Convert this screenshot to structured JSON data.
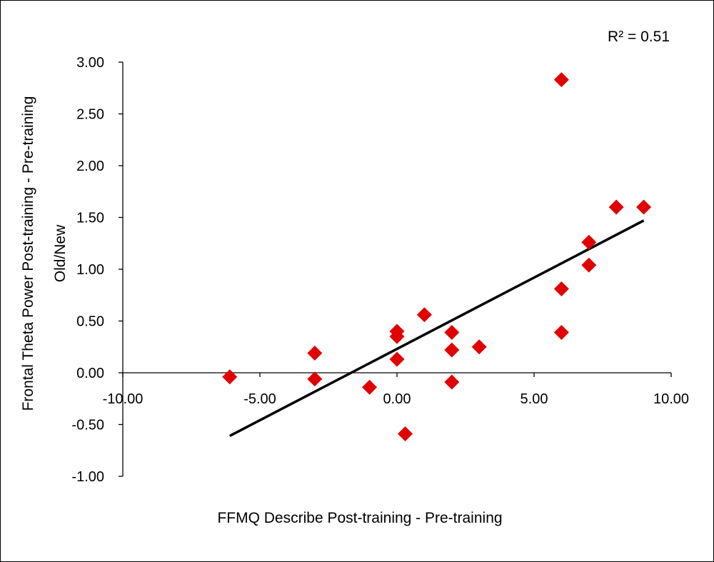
{
  "chart_data": {
    "type": "scatter",
    "title": "",
    "xlabel": "FFMQ Describe Post-training - Pre-training",
    "ylabel_lines": [
      "Frontal Theta Power Post-training - Pre-training",
      "Old/New"
    ],
    "xlim": [
      -10,
      10
    ],
    "ylim": [
      -1,
      3
    ],
    "x_ticks": [
      -10,
      -5,
      0,
      5,
      10
    ],
    "x_tick_labels": [
      "-10.00",
      "-5.00",
      "0.00",
      "5.00",
      "10.00"
    ],
    "y_ticks": [
      3,
      2.5,
      2,
      1.5,
      1,
      0.5,
      0,
      -0.5,
      -1
    ],
    "y_tick_labels": [
      "3.00",
      "2.50",
      "2.00",
      "1.50",
      "1.00",
      "0.50",
      "0.00",
      "-0.50",
      "-1.00"
    ],
    "grid": false,
    "legend": "none",
    "marker": "diamond",
    "marker_color": "#e00000",
    "line_color": "#000000",
    "annotation": "R² = 0.51",
    "points": [
      {
        "x": -6.1,
        "y": -0.04
      },
      {
        "x": -3.0,
        "y": 0.19
      },
      {
        "x": -3.0,
        "y": -0.06
      },
      {
        "x": -1.0,
        "y": -0.14
      },
      {
        "x": 0.0,
        "y": 0.4
      },
      {
        "x": 0.0,
        "y": 0.35
      },
      {
        "x": 0.0,
        "y": 0.13
      },
      {
        "x": 0.3,
        "y": -0.59
      },
      {
        "x": 1.0,
        "y": 0.56
      },
      {
        "x": 2.0,
        "y": 0.39
      },
      {
        "x": 2.0,
        "y": 0.22
      },
      {
        "x": 2.0,
        "y": -0.09
      },
      {
        "x": 3.0,
        "y": 0.25
      },
      {
        "x": 6.0,
        "y": 2.83
      },
      {
        "x": 6.0,
        "y": 0.81
      },
      {
        "x": 6.0,
        "y": 0.39
      },
      {
        "x": 7.0,
        "y": 1.26
      },
      {
        "x": 7.0,
        "y": 1.04
      },
      {
        "x": 8.0,
        "y": 1.6
      },
      {
        "x": 9.0,
        "y": 1.6
      }
    ],
    "trendline": {
      "x": [
        -6.1,
        9.0
      ],
      "y": [
        -0.61,
        1.47
      ]
    }
  }
}
